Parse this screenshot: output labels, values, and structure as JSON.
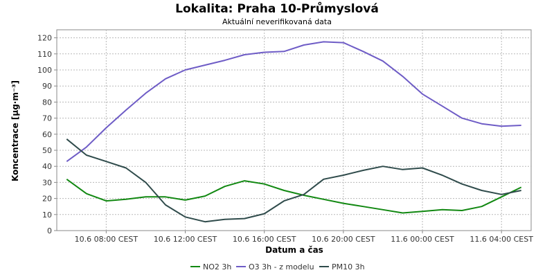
{
  "chart_data": {
    "type": "line",
    "title": "Lokalita: Praha 10-Průmyslová",
    "subtitle": "Aktuální neverifikovaná data",
    "xlabel": "Datum a čas",
    "ylabel": "Koncentrace [µg·m⁻³]",
    "ylim": [
      0,
      125
    ],
    "yticks": [
      0,
      10,
      20,
      30,
      40,
      50,
      60,
      70,
      80,
      90,
      100,
      110,
      120
    ],
    "xlim": [
      5.5,
      29.5
    ],
    "x": [
      6,
      7,
      8,
      9,
      10,
      11,
      12,
      13,
      14,
      15,
      16,
      17,
      18,
      19,
      20,
      21,
      22,
      23,
      24,
      25,
      26,
      27,
      28,
      29
    ],
    "xticks": [
      {
        "x": 8,
        "label": "10.6 08:00 CEST"
      },
      {
        "x": 12,
        "label": "10.6 12:00 CEST"
      },
      {
        "x": 16,
        "label": "10.6 16:00 CEST"
      },
      {
        "x": 20,
        "label": "10.6 20:00 CEST"
      },
      {
        "x": 24,
        "label": "11.6 00:00 CEST"
      },
      {
        "x": 28,
        "label": "11.6 04:00 CEST"
      }
    ],
    "grid": true,
    "legend_position": "bottom",
    "series": [
      {
        "name": "NO2 3h",
        "color": "#118811",
        "values": [
          32,
          23,
          18.5,
          19.5,
          21,
          21,
          19,
          21.5,
          27.5,
          31,
          29,
          25,
          22,
          19.5,
          17,
          15,
          13,
          11,
          12,
          13,
          12.5,
          15,
          21,
          27
        ]
      },
      {
        "name": "O3 3h - z modelu",
        "color": "#6e5cc6",
        "values": [
          43,
          52,
          64,
          75,
          85.5,
          94.5,
          100,
          103,
          106,
          109.5,
          111,
          111.5,
          115.5,
          117.5,
          117,
          111.5,
          105.5,
          96,
          85,
          77.5,
          70,
          66.5,
          65,
          65.5
        ]
      },
      {
        "name": "PM10 3h",
        "color": "#2f4b4b",
        "values": [
          57,
          47,
          43,
          39,
          30,
          16,
          8.5,
          5.5,
          7,
          7.5,
          10.5,
          18.5,
          22.5,
          32,
          34.5,
          37.5,
          40,
          38,
          39,
          34.5,
          29,
          25,
          22.5,
          25
        ]
      }
    ]
  }
}
